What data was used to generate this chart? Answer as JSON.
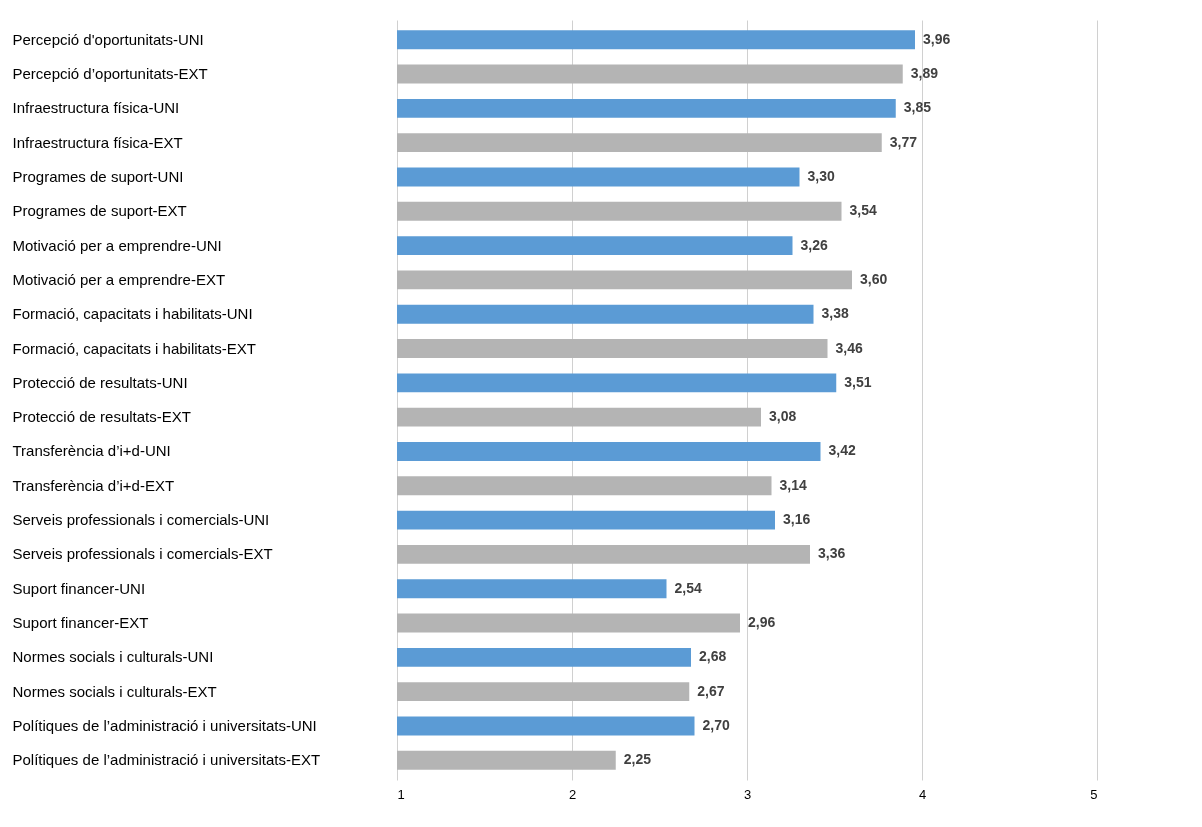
{
  "chart_data": {
    "type": "bar",
    "orientation": "horizontal",
    "categories": [
      "Percepció d'oportunitats-UNI",
      "Percepció d’oportunitats-EXT",
      "Infraestructura física-UNI",
      "Infraestructura física-EXT",
      "Programes de suport-UNI",
      "Programes de suport-EXT",
      "Motivació per a emprendre-UNI",
      "Motivació per a emprendre-EXT",
      "Formació, capacitats i habilitats-UNI",
      "Formació, capacitats i habilitats-EXT",
      "Protecció de resultats-UNI",
      "Protecció de resultats-EXT",
      "Transferència d’i+d-UNI",
      "Transferència d’i+d-EXT",
      "Serveis professionals i comercials-UNI",
      "Serveis professionals i comercials-EXT",
      "Suport financer-UNI",
      "Suport financer-EXT",
      "Normes socials i culturals-UNI",
      "Normes socials i culturals-EXT",
      "Polítiques de l’administració i universitats-UNI",
      "Polítiques de l’administració i universitats-EXT"
    ],
    "values": [
      3.96,
      3.89,
      3.85,
      3.77,
      3.3,
      3.54,
      3.26,
      3.6,
      3.38,
      3.46,
      3.51,
      3.08,
      3.42,
      3.14,
      3.16,
      3.36,
      2.54,
      2.96,
      2.68,
      2.67,
      2.7,
      2.25
    ],
    "value_labels": [
      "3,96",
      "3,89",
      "3,85",
      "3,77",
      "3,30",
      "3,54",
      "3,26",
      "3,60",
      "3,38",
      "3,46",
      "3,51",
      "3,08",
      "3,42",
      "3,14",
      "3,16",
      "3,36",
      "2,54",
      "2,96",
      "2,68",
      "2,67",
      "2,70",
      "2,25"
    ],
    "colors": [
      "#5b9bd5",
      "#b4b4b4",
      "#5b9bd5",
      "#b4b4b4",
      "#5b9bd5",
      "#b4b4b4",
      "#5b9bd5",
      "#b4b4b4",
      "#5b9bd5",
      "#b4b4b4",
      "#5b9bd5",
      "#b4b4b4",
      "#5b9bd5",
      "#b4b4b4",
      "#5b9bd5",
      "#b4b4b4",
      "#5b9bd5",
      "#b4b4b4",
      "#5b9bd5",
      "#b4b4b4",
      "#5b9bd5",
      "#b4b4b4"
    ],
    "xlim": [
      1,
      5
    ],
    "xticks": [
      1,
      2,
      3,
      4,
      5
    ],
    "grid": "x",
    "legend": false
  }
}
